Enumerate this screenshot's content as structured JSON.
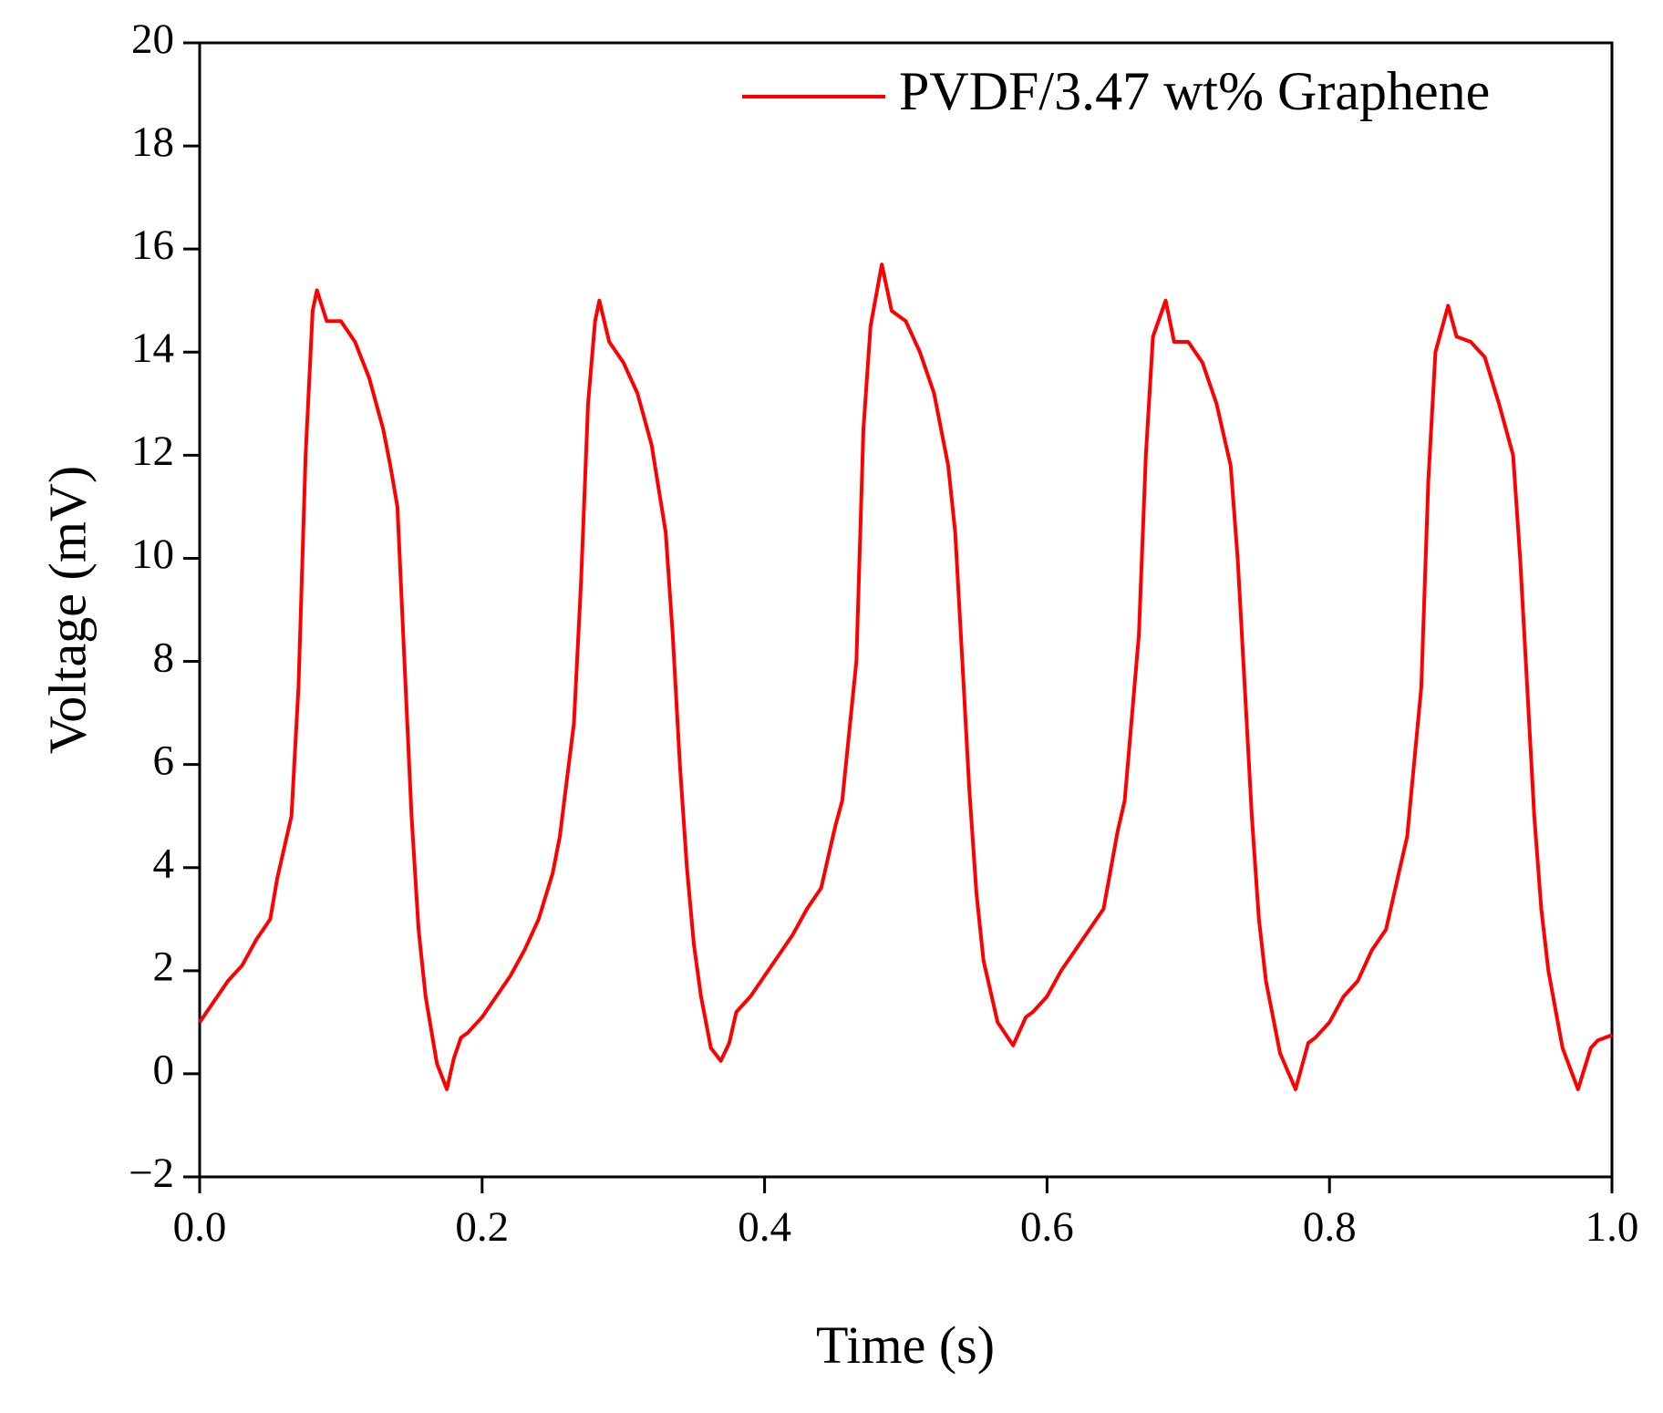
{
  "chart_data": {
    "type": "line",
    "xlabel": "Time (s)",
    "ylabel": "Voltage (mV)",
    "xlim": [
      0,
      1.0
    ],
    "ylim": [
      -2,
      20
    ],
    "xticks": [
      {
        "value": 0,
        "label": "0.0"
      },
      0.2,
      0.4,
      0.6,
      0.8,
      {
        "value": 1.0,
        "label": "1.0"
      }
    ],
    "yticks": [
      {
        "value": -2,
        "label": "−2"
      },
      0,
      2,
      4,
      6,
      8,
      10,
      12,
      14,
      16,
      18,
      20
    ],
    "legend": "upper right",
    "x": [
      0,
      0.01,
      0.02,
      0.03,
      0.04,
      0.05,
      0.055,
      0.065,
      0.07,
      0.075,
      0.08,
      0.083,
      0.09,
      0.1,
      0.11,
      0.12,
      0.13,
      0.135,
      0.14,
      0.145,
      0.15,
      0.155,
      0.16,
      0.168,
      0.175,
      0.18,
      0.185,
      0.19,
      0.2,
      0.21,
      0.22,
      0.23,
      0.24,
      0.25,
      0.255,
      0.265,
      0.27,
      0.275,
      0.28,
      0.283,
      0.29,
      0.3,
      0.31,
      0.32,
      0.33,
      0.335,
      0.34,
      0.345,
      0.35,
      0.355,
      0.362,
      0.369,
      0.375,
      0.38,
      0.39,
      0.4,
      0.41,
      0.42,
      0.43,
      0.44,
      0.45,
      0.455,
      0.465,
      0.47,
      0.475,
      0.483,
      0.49,
      0.5,
      0.51,
      0.52,
      0.53,
      0.535,
      0.54,
      0.545,
      0.55,
      0.555,
      0.565,
      0.576,
      0.585,
      0.59,
      0.6,
      0.61,
      0.62,
      0.63,
      0.64,
      0.65,
      0.655,
      0.665,
      0.67,
      0.675,
      0.684,
      0.69,
      0.7,
      0.71,
      0.72,
      0.73,
      0.735,
      0.74,
      0.745,
      0.75,
      0.755,
      0.765,
      0.776,
      0.785,
      0.79,
      0.8,
      0.81,
      0.82,
      0.83,
      0.84,
      0.85,
      0.855,
      0.865,
      0.87,
      0.875,
      0.884,
      0.89,
      0.9,
      0.91,
      0.92,
      0.93,
      0.935,
      0.94,
      0.945,
      0.95,
      0.955,
      0.965,
      0.976,
      0.985,
      0.99,
      1.0
    ],
    "series": [
      {
        "name": "PVDF/3.47 wt% Graphene",
        "color": "#ff0000",
        "values": [
          1.0,
          1.4,
          1.8,
          2.1,
          2.6,
          3.0,
          3.8,
          5.0,
          7.5,
          12.0,
          14.8,
          15.2,
          14.6,
          14.6,
          14.2,
          13.5,
          12.5,
          11.8,
          11.0,
          8.0,
          5.0,
          2.8,
          1.5,
          0.2,
          -0.3,
          0.3,
          0.7,
          0.8,
          1.1,
          1.5,
          1.9,
          2.4,
          3.0,
          3.9,
          4.6,
          6.8,
          9.5,
          13.0,
          14.6,
          15.0,
          14.2,
          13.8,
          13.2,
          12.2,
          10.5,
          8.5,
          6.0,
          4.0,
          2.5,
          1.5,
          0.5,
          0.25,
          0.6,
          1.2,
          1.5,
          1.9,
          2.3,
          2.7,
          3.2,
          3.6,
          4.8,
          5.3,
          8.0,
          12.5,
          14.5,
          15.7,
          14.8,
          14.6,
          14.0,
          13.2,
          11.8,
          10.5,
          8.0,
          5.5,
          3.5,
          2.2,
          1.0,
          0.55,
          1.1,
          1.2,
          1.5,
          2.0,
          2.4,
          2.8,
          3.2,
          4.7,
          5.3,
          8.5,
          12.0,
          14.3,
          15.0,
          14.2,
          14.2,
          13.8,
          13.0,
          11.8,
          10.0,
          7.5,
          5.0,
          3.0,
          1.8,
          0.4,
          -0.3,
          0.6,
          0.7,
          1.0,
          1.5,
          1.8,
          2.4,
          2.8,
          4.0,
          4.6,
          7.5,
          11.5,
          14.0,
          14.9,
          14.3,
          14.2,
          13.9,
          13.0,
          12.0,
          10.0,
          7.5,
          5.0,
          3.2,
          2.0,
          0.5,
          -0.3,
          0.5,
          0.65,
          0.75
        ]
      }
    ]
  }
}
